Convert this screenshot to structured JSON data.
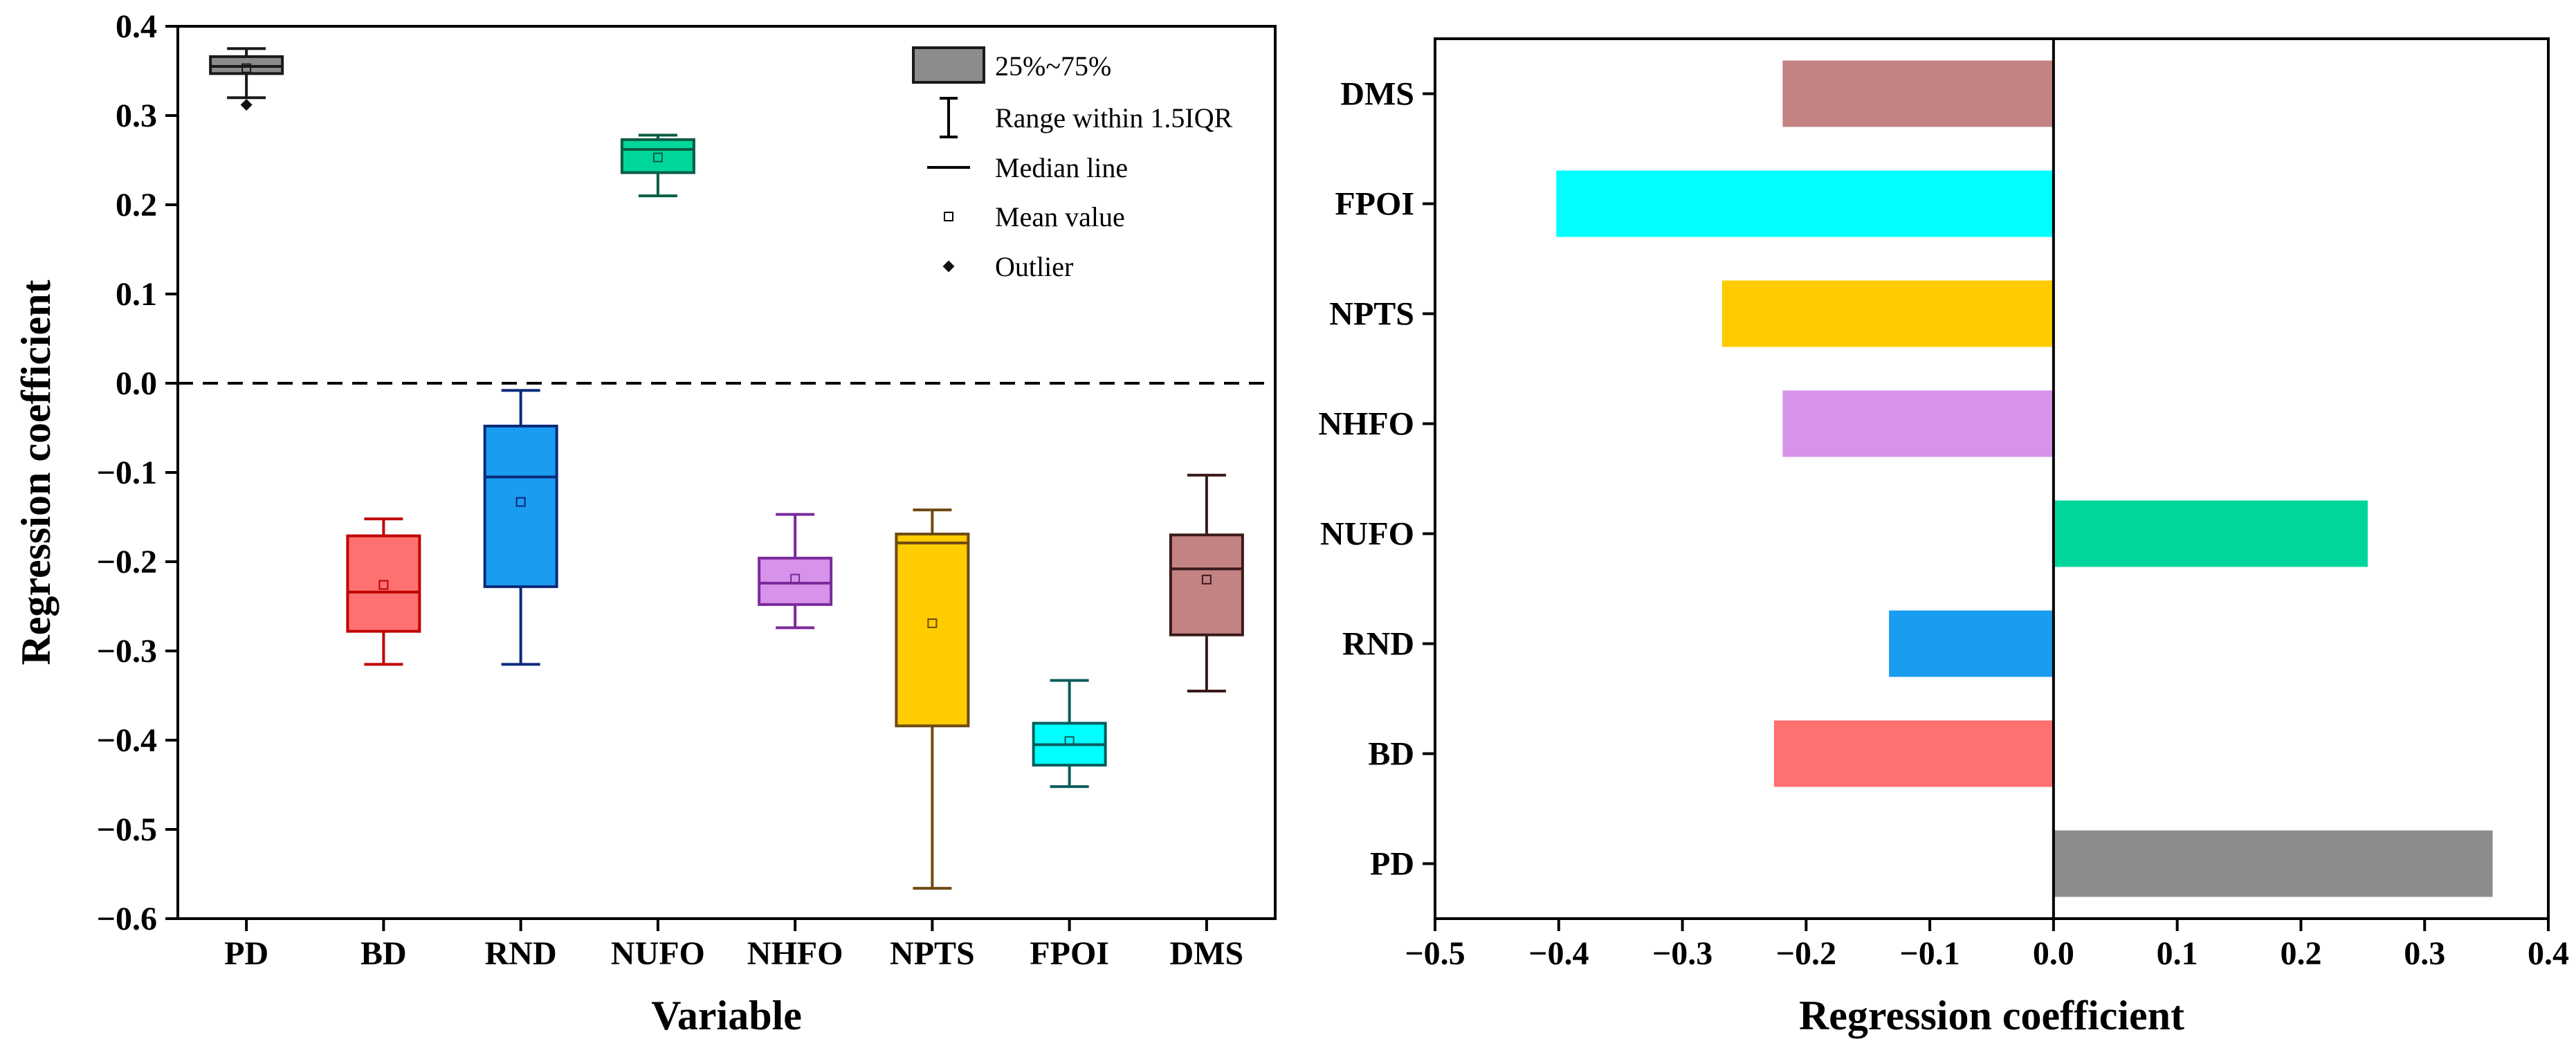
{
  "chart_data": [
    {
      "type": "box",
      "title": "",
      "xlabel": "Variable",
      "ylabel": "Regression coefficient",
      "ylim": [
        -0.6,
        0.4
      ],
      "yticks": [
        "0.4",
        "0.3",
        "0.2",
        "0.1",
        "0.0",
        "−0.1",
        "−0.2",
        "−0.3",
        "−0.4",
        "−0.5",
        "−0.6"
      ],
      "reference_line": 0.0,
      "categories": [
        "PD",
        "BD",
        "RND",
        "NUFO",
        "NHFO",
        "NPTS",
        "FPOI",
        "DMS"
      ],
      "boxes": [
        {
          "name": "PD",
          "whisker_low": 0.32,
          "q1": 0.347,
          "median": 0.355,
          "q3": 0.366,
          "whisker_high": 0.375,
          "mean": 0.353,
          "outliers": [
            0.312
          ],
          "fill": "#8c8c8c",
          "edge": "#1a1a1a"
        },
        {
          "name": "BD",
          "whisker_low": -0.315,
          "q1": -0.278,
          "median": -0.234,
          "q3": -0.171,
          "whisker_high": -0.152,
          "mean": -0.226,
          "outliers": [],
          "fill": "#ff7070",
          "edge": "#c00000"
        },
        {
          "name": "RND",
          "whisker_low": -0.315,
          "q1": -0.228,
          "median": -0.105,
          "q3": -0.048,
          "whisker_high": -0.008,
          "mean": -0.133,
          "outliers": [],
          "fill": "#1a9cf0",
          "edge": "#0b2a7a"
        },
        {
          "name": "NUFO",
          "whisker_low": 0.21,
          "q1": 0.236,
          "median": 0.262,
          "q3": 0.273,
          "whisker_high": 0.278,
          "mean": 0.253,
          "outliers": [],
          "fill": "#00d69b",
          "edge": "#0b5c44"
        },
        {
          "name": "NHFO",
          "whisker_low": -0.274,
          "q1": -0.248,
          "median": -0.224,
          "q3": -0.196,
          "whisker_high": -0.147,
          "mean": -0.219,
          "outliers": [],
          "fill": "#d793ea",
          "edge": "#7a2a9a"
        },
        {
          "name": "NPTS",
          "whisker_low": -0.566,
          "q1": -0.384,
          "median": -0.179,
          "q3": -0.169,
          "whisker_high": -0.142,
          "mean": -0.269,
          "outliers": [],
          "fill": "#ffcc00",
          "edge": "#6e4a12"
        },
        {
          "name": "FPOI",
          "whisker_low": -0.452,
          "q1": -0.428,
          "median": -0.405,
          "q3": -0.381,
          "whisker_high": -0.333,
          "mean": -0.401,
          "outliers": [],
          "fill": "#00ffff",
          "edge": "#0b5c5c"
        },
        {
          "name": "DMS",
          "whisker_low": -0.345,
          "q1": -0.282,
          "median": -0.208,
          "q3": -0.17,
          "whisker_high": -0.103,
          "mean": -0.22,
          "outliers": [],
          "fill": "#c48383",
          "edge": "#3a1a1a"
        }
      ],
      "legend": {
        "placement": "top-right",
        "items": [
          {
            "key": "box",
            "label": "25%~75%"
          },
          {
            "key": "range",
            "label": "Range within 1.5IQR"
          },
          {
            "key": "median",
            "label": "Median line"
          },
          {
            "key": "mean",
            "label": "Mean value"
          },
          {
            "key": "outlier",
            "label": "Outlier"
          }
        ]
      }
    },
    {
      "type": "bar",
      "orientation": "horizontal",
      "title": "",
      "xlabel": "Regression coefficient",
      "ylabel": "",
      "xlim": [
        -0.5,
        0.4
      ],
      "xticks": [
        "−0.5",
        "−0.4",
        "−0.3",
        "−0.2",
        "−0.1",
        "0.0",
        "0.1",
        "0.2",
        "0.3",
        "0.4"
      ],
      "categories": [
        "DMS",
        "FPOI",
        "NPTS",
        "NHFO",
        "NUFO",
        "RND",
        "BD",
        "PD"
      ],
      "values": [
        -0.219,
        -0.402,
        -0.268,
        -0.219,
        0.254,
        -0.133,
        -0.226,
        0.355
      ],
      "colors": [
        "#c48383",
        "#00ffff",
        "#ffcc00",
        "#d793ea",
        "#00d69b",
        "#1a9cf0",
        "#ff7070",
        "#8c8c8c"
      ]
    }
  ]
}
